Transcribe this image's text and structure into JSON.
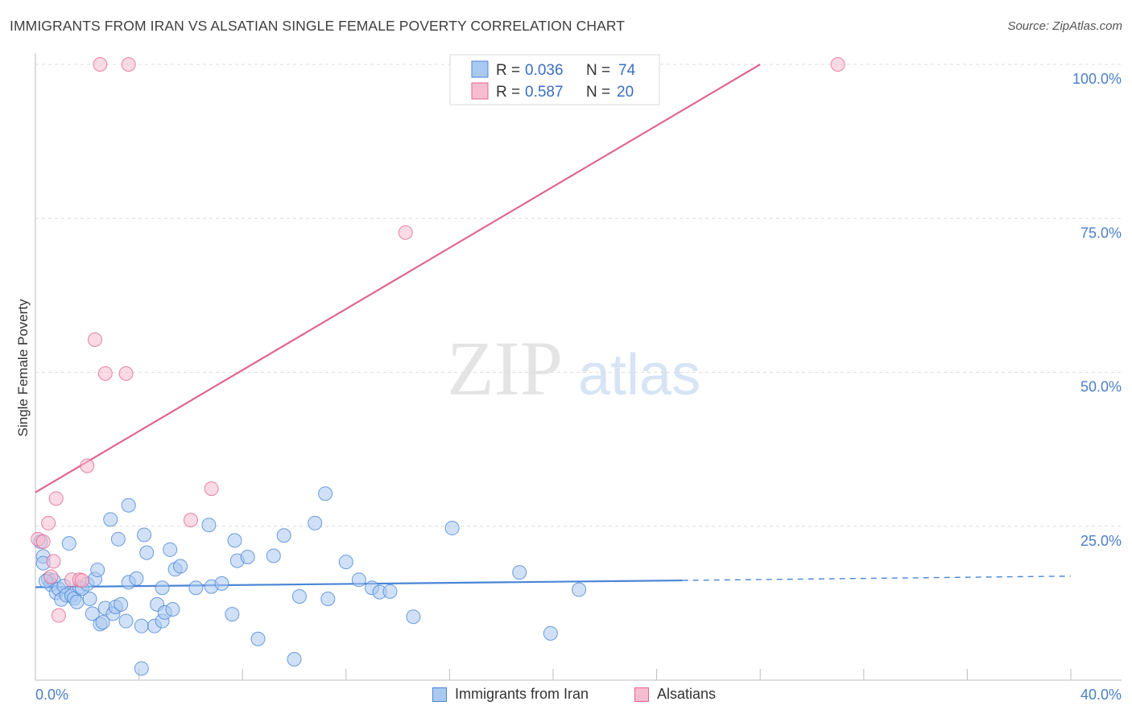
{
  "header": {
    "title": "IMMIGRANTS FROM IRAN VS ALSATIAN SINGLE FEMALE POVERTY CORRELATION CHART",
    "source": "Source: ZipAtlas.com"
  },
  "watermark": {
    "zip": "ZIP",
    "atlas": "atlas"
  },
  "colors": {
    "blue": "#4a86d6",
    "blue_fill": "#a9c9f0",
    "pink": "#e0668f",
    "pink_fill": "#f6bcd0",
    "axis_text": "#4a7fc8"
  },
  "legend": {
    "rows": [
      {
        "r_label": "R =",
        "r_value": "0.036",
        "n_label": "N =",
        "n_value": "74"
      },
      {
        "r_label": "R =",
        "r_value": "0.587",
        "n_label": "N =",
        "n_value": "20"
      }
    ]
  },
  "bottom_legend": {
    "series1": "Immigrants from Iran",
    "series2": "Alsatians"
  },
  "chart_data": {
    "type": "scatter",
    "title": "IMMIGRANTS FROM IRAN VS ALSATIAN SINGLE FEMALE POVERTY CORRELATION CHART",
    "xlabel": "",
    "ylabel": "Single Female Poverty",
    "xlim": [
      0,
      40
    ],
    "ylim": [
      0,
      100
    ],
    "x_tick_labels": [
      "0.0%",
      "40.0%"
    ],
    "y_tick_values": [
      25,
      50,
      75,
      100
    ],
    "y_tick_labels": [
      "25.0%",
      "50.0%",
      "75.0%",
      "100.0%"
    ],
    "grid": true,
    "series": [
      {
        "name": "Immigrants from Iran",
        "color": "#4a86d6",
        "r": 0.036,
        "n": 74,
        "trend": {
          "x0": 0,
          "y0": 15.1,
          "x1": 25,
          "y1": 16.2,
          "dashed_to": 40,
          "dashed_y": 16.9
        },
        "points": [
          [
            0.2,
            22.5
          ],
          [
            0.3,
            20.1
          ],
          [
            0.3,
            19.0
          ],
          [
            0.5,
            16.4
          ],
          [
            0.6,
            15.5
          ],
          [
            0.7,
            16.2
          ],
          [
            0.8,
            14.2
          ],
          [
            0.9,
            14.8
          ],
          [
            1.0,
            13.1
          ],
          [
            1.1,
            15.3
          ],
          [
            1.2,
            13.8
          ],
          [
            1.3,
            22.2
          ],
          [
            1.4,
            13.7
          ],
          [
            1.5,
            13.3
          ],
          [
            1.6,
            12.7
          ],
          [
            1.7,
            15.1
          ],
          [
            1.8,
            14.9
          ],
          [
            2.0,
            15.6
          ],
          [
            2.1,
            13.2
          ],
          [
            2.2,
            10.8
          ],
          [
            2.3,
            16.4
          ],
          [
            2.4,
            17.9
          ],
          [
            2.5,
            9.1
          ],
          [
            2.6,
            9.4
          ],
          [
            2.7,
            11.7
          ],
          [
            2.9,
            26.1
          ],
          [
            3.0,
            10.8
          ],
          [
            3.1,
            11.9
          ],
          [
            3.2,
            22.9
          ],
          [
            3.3,
            12.3
          ],
          [
            3.5,
            9.6
          ],
          [
            3.6,
            28.4
          ],
          [
            3.6,
            15.9
          ],
          [
            3.9,
            16.5
          ],
          [
            4.1,
            8.8
          ],
          [
            4.1,
            1.9
          ],
          [
            4.2,
            23.6
          ],
          [
            4.3,
            20.7
          ],
          [
            4.6,
            8.8
          ],
          [
            4.7,
            12.3
          ],
          [
            4.9,
            9.6
          ],
          [
            4.9,
            15.0
          ],
          [
            5.0,
            11.0
          ],
          [
            5.2,
            21.2
          ],
          [
            5.3,
            11.5
          ],
          [
            5.4,
            18.0
          ],
          [
            5.6,
            18.5
          ],
          [
            6.2,
            15.0
          ],
          [
            6.7,
            25.2
          ],
          [
            6.8,
            15.2
          ],
          [
            7.2,
            15.7
          ],
          [
            7.6,
            10.7
          ],
          [
            7.7,
            22.7
          ],
          [
            7.8,
            19.4
          ],
          [
            8.2,
            20.0
          ],
          [
            8.6,
            6.7
          ],
          [
            9.2,
            20.2
          ],
          [
            9.6,
            23.5
          ],
          [
            10.0,
            3.4
          ],
          [
            10.2,
            13.6
          ],
          [
            10.8,
            25.5
          ],
          [
            11.2,
            30.3
          ],
          [
            11.3,
            13.2
          ],
          [
            12.0,
            19.2
          ],
          [
            12.5,
            16.3
          ],
          [
            13.0,
            15.0
          ],
          [
            13.3,
            14.3
          ],
          [
            13.7,
            14.4
          ],
          [
            14.6,
            10.3
          ],
          [
            16.1,
            24.7
          ],
          [
            18.7,
            17.5
          ],
          [
            19.9,
            7.6
          ],
          [
            21.0,
            14.7
          ],
          [
            0.4,
            16.1
          ]
        ]
      },
      {
        "name": "Alsatians",
        "color": "#e0668f",
        "r": 0.587,
        "n": 20,
        "trend": {
          "x0": 0,
          "y0": 30.5,
          "x1": 28,
          "y1": 100
        },
        "points": [
          [
            0.1,
            22.9
          ],
          [
            0.3,
            22.5
          ],
          [
            0.5,
            25.5
          ],
          [
            0.6,
            16.8
          ],
          [
            0.7,
            19.3
          ],
          [
            0.8,
            29.5
          ],
          [
            0.9,
            10.5
          ],
          [
            1.4,
            16.3
          ],
          [
            1.7,
            16.3
          ],
          [
            1.8,
            16.2
          ],
          [
            2.0,
            34.8
          ],
          [
            2.3,
            55.3
          ],
          [
            2.5,
            100.0
          ],
          [
            2.7,
            49.8
          ],
          [
            3.5,
            49.8
          ],
          [
            3.6,
            100.0
          ],
          [
            6.0,
            26.0
          ],
          [
            6.8,
            31.1
          ],
          [
            14.3,
            72.7
          ],
          [
            31.0,
            100.0
          ]
        ]
      }
    ]
  }
}
